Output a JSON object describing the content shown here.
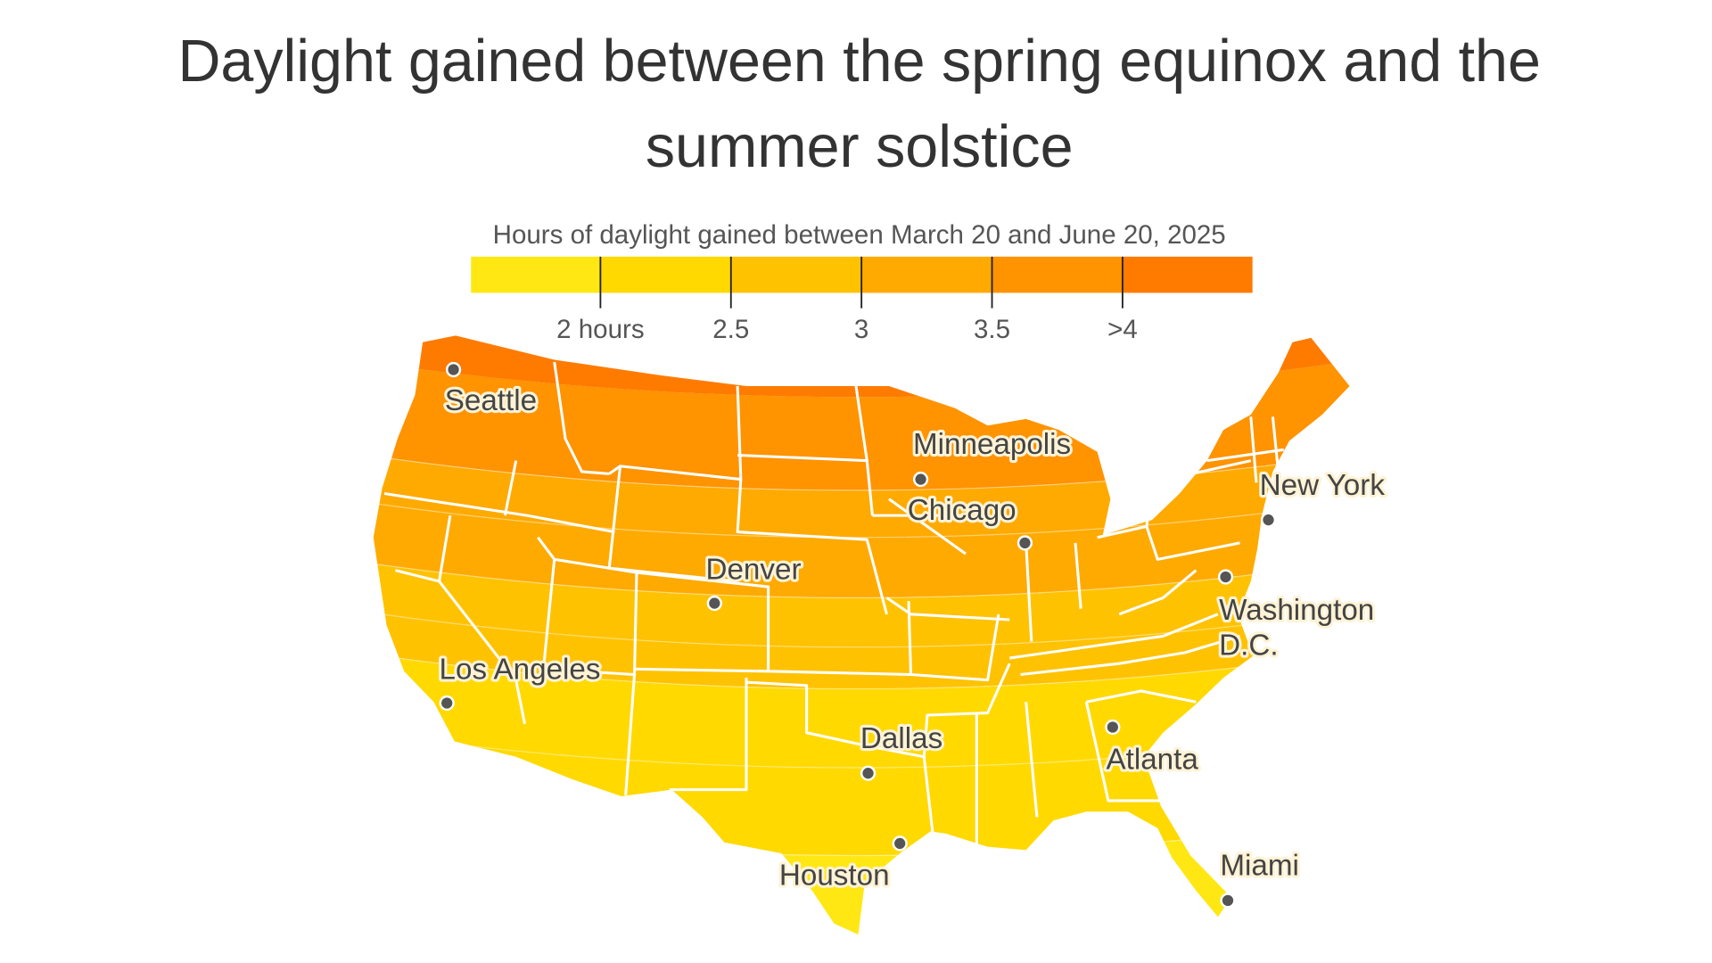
{
  "title_lines": [
    "Daylight gained between the spring equinox and the",
    "summer solstice"
  ],
  "legend": {
    "title": "Hours of daylight gained between March 20 and June 20, 2025",
    "bins": [
      {
        "range": "<2",
        "color": "#FFE714"
      },
      {
        "range": "2-2.5",
        "color": "#FFD900"
      },
      {
        "range": "2.5-3",
        "color": "#FFC200"
      },
      {
        "range": "3-3.5",
        "color": "#FFAA00"
      },
      {
        "range": "3.5-4",
        "color": "#FF9300"
      },
      {
        "range": ">4",
        "color": "#FF7B00"
      }
    ],
    "tick_labels": [
      "2 hours",
      "2.5",
      "3",
      "3.5",
      ">4"
    ]
  },
  "cities": [
    {
      "name": "Seattle"
    },
    {
      "name": "Minneapolis"
    },
    {
      "name": "Chicago"
    },
    {
      "name": "New York"
    },
    {
      "name": "Washington",
      "name2": "D.C."
    },
    {
      "name": "Denver"
    },
    {
      "name": "Los Angeles"
    },
    {
      "name": "Dallas"
    },
    {
      "name": "Atlanta"
    },
    {
      "name": "Houston"
    },
    {
      "name": "Miami"
    }
  ]
}
